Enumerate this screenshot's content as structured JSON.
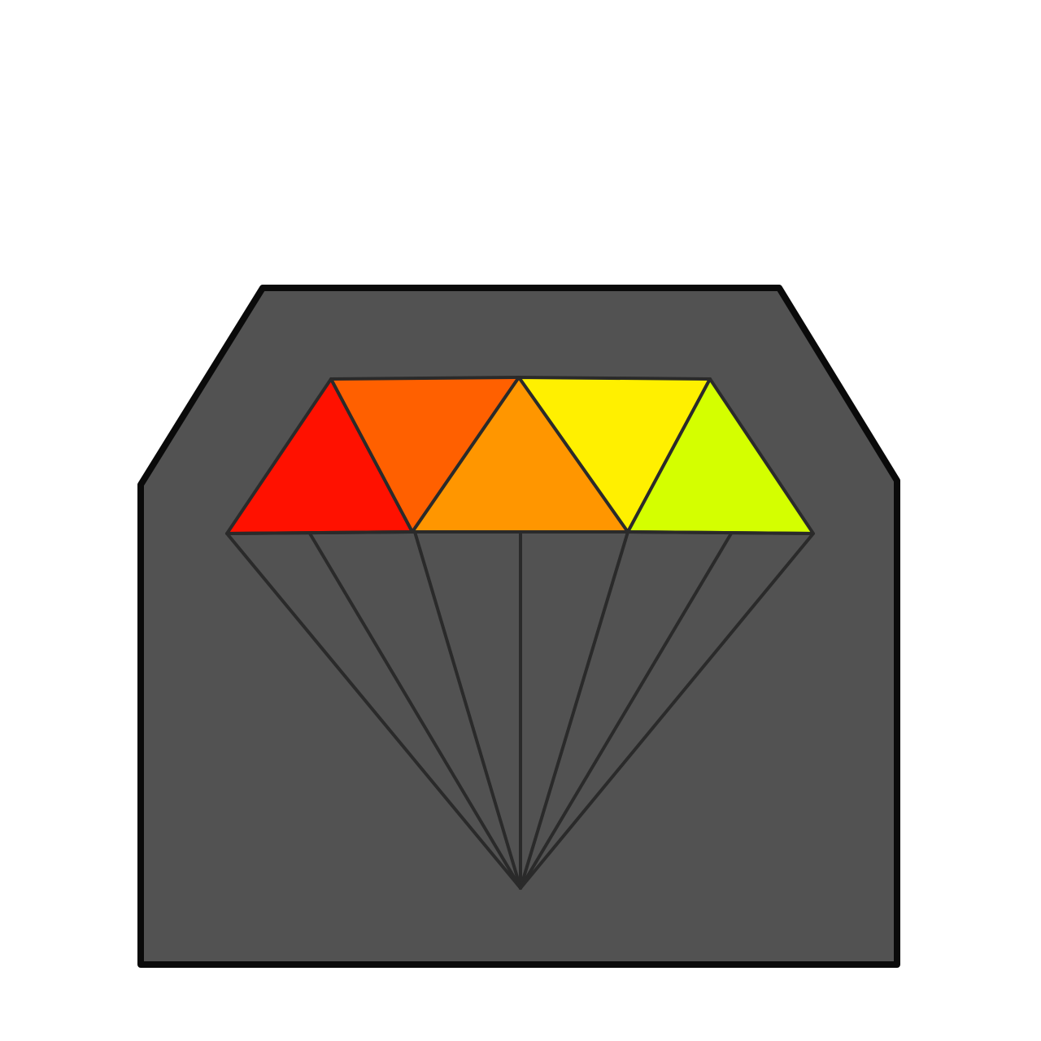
{
  "icon": {
    "name": "diamond-badge-icon",
    "background_color": "#ffffff",
    "badge": {
      "fill": "#525252",
      "stroke": "#0a0a0a"
    },
    "facet_line_color": "#2a2a2a",
    "top_facets": [
      {
        "name": "facet-red",
        "color": "#ff1100"
      },
      {
        "name": "facet-orange-red",
        "color": "#ff6000"
      },
      {
        "name": "facet-orange",
        "color": "#ff9600"
      },
      {
        "name": "facet-yellow",
        "color": "#fff000"
      },
      {
        "name": "facet-lime",
        "color": "#d4ff00"
      }
    ]
  }
}
